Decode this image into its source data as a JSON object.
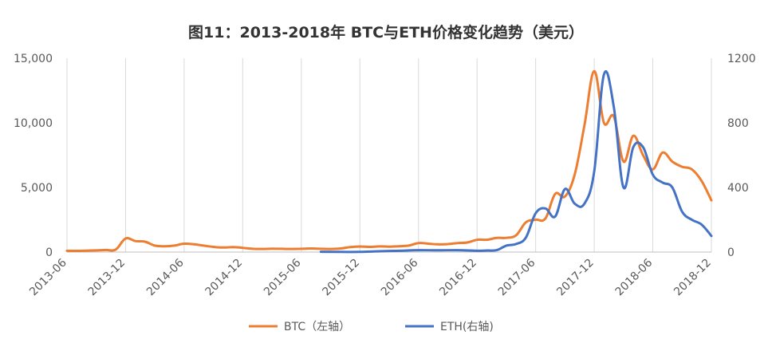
{
  "chart_data": {
    "type": "line",
    "title": "图11：2013-2018年 BTC与ETH价格变化趋势（美元）",
    "x_ticks": [
      "2013-06",
      "2013-12",
      "2014-06",
      "2014-12",
      "2015-06",
      "2015-12",
      "2016-06",
      "2016-12",
      "2017-06",
      "2017-12",
      "2018-06",
      "2018-12"
    ],
    "y_left_ticks": [
      "0",
      "5,000",
      "10,000",
      "15,000"
    ],
    "y_right_ticks": [
      "0",
      "400",
      "800",
      "1200"
    ],
    "ylim_left": [
      0,
      15000
    ],
    "ylim_right": [
      0,
      1200
    ],
    "grid": "vertical",
    "legend_position": "bottom",
    "series": [
      {
        "name": "BTC（左轴）",
        "axis": "left",
        "color": "#ED7D31",
        "x": [
          "2013-06",
          "2013-07",
          "2013-08",
          "2013-09",
          "2013-10",
          "2013-11",
          "2013-12",
          "2014-01",
          "2014-02",
          "2014-03",
          "2014-04",
          "2014-05",
          "2014-06",
          "2014-07",
          "2014-08",
          "2014-09",
          "2014-10",
          "2014-11",
          "2014-12",
          "2015-01",
          "2015-02",
          "2015-03",
          "2015-04",
          "2015-05",
          "2015-06",
          "2015-07",
          "2015-08",
          "2015-09",
          "2015-10",
          "2015-11",
          "2015-12",
          "2016-01",
          "2016-02",
          "2016-03",
          "2016-04",
          "2016-05",
          "2016-06",
          "2016-07",
          "2016-08",
          "2016-09",
          "2016-10",
          "2016-11",
          "2016-12",
          "2017-01",
          "2017-02",
          "2017-03",
          "2017-04",
          "2017-05",
          "2017-06",
          "2017-07",
          "2017-08",
          "2017-09",
          "2017-10",
          "2017-11",
          "2017-12",
          "2018-01",
          "2018-02",
          "2018-03",
          "2018-04",
          "2018-05",
          "2018-06",
          "2018-07",
          "2018-08",
          "2018-09",
          "2018-10",
          "2018-11",
          "2018-12"
        ],
        "values": [
          100,
          90,
          110,
          130,
          160,
          200,
          1050,
          850,
          800,
          500,
          450,
          500,
          650,
          600,
          500,
          400,
          350,
          380,
          330,
          250,
          240,
          260,
          250,
          240,
          250,
          280,
          250,
          240,
          280,
          380,
          430,
          400,
          440,
          420,
          450,
          500,
          700,
          650,
          600,
          620,
          700,
          740,
          950,
          950,
          1100,
          1100,
          1300,
          2300,
          2500,
          2600,
          4500,
          4300,
          6000,
          9800,
          14000,
          10000,
          10500,
          7000,
          9000,
          7500,
          6400,
          7700,
          7000,
          6600,
          6400,
          5500,
          4000
        ]
      },
      {
        "name": "ETH(右轴)",
        "axis": "right",
        "color": "#4472C4",
        "x": [
          "2015-08",
          "2015-10",
          "2015-12",
          "2016-02",
          "2016-04",
          "2016-06",
          "2016-08",
          "2016-10",
          "2016-12",
          "2017-01",
          "2017-02",
          "2017-03",
          "2017-04",
          "2017-05",
          "2017-06",
          "2017-07",
          "2017-08",
          "2017-09",
          "2017-10",
          "2017-11",
          "2017-12",
          "2018-01",
          "2018-02",
          "2018-03",
          "2018-04",
          "2018-05",
          "2018-06",
          "2018-07",
          "2018-08",
          "2018-09",
          "2018-10",
          "2018-11",
          "2018-12"
        ],
        "values": [
          2,
          1,
          1,
          5,
          8,
          12,
          11,
          12,
          8,
          10,
          12,
          40,
          50,
          90,
          240,
          270,
          220,
          390,
          300,
          300,
          500,
          1100,
          900,
          400,
          650,
          650,
          480,
          430,
          400,
          250,
          200,
          170,
          100
        ]
      }
    ]
  }
}
